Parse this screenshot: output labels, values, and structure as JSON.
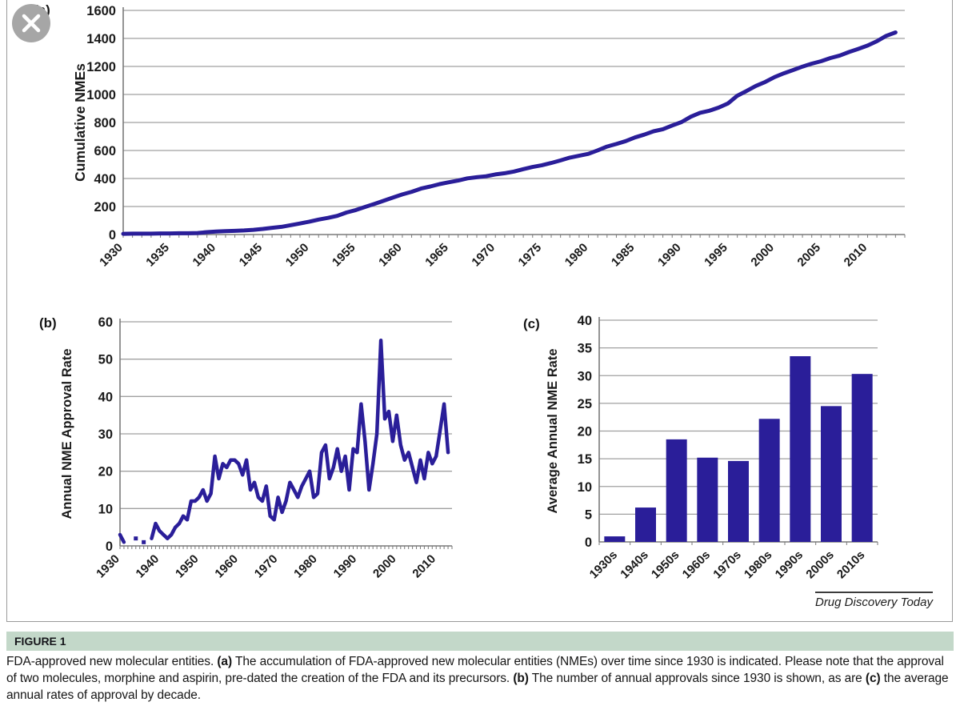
{
  "panels": {
    "a_tag": "(a)",
    "b_tag": "(b)",
    "c_tag": "(c)"
  },
  "source_label": "Drug Discovery Today",
  "caption": {
    "heading": "FIGURE 1",
    "segments": [
      {
        "text": "FDA-approved new molecular entities. ",
        "bold": false
      },
      {
        "text": "(a)",
        "bold": true
      },
      {
        "text": " The accumulation of FDA-approved new molecular entities (NMEs) over time since 1930 is indicated. Please note that the approval of two molecules, morphine and aspirin, pre-dated the creation of the FDA and its precursors. ",
        "bold": false
      },
      {
        "text": "(b)",
        "bold": true
      },
      {
        "text": " The number of annual approvals since 1930 is shown, as are ",
        "bold": false
      },
      {
        "text": "(c)",
        "bold": true
      },
      {
        "text": " the average annual rates of approval by decade.",
        "bold": false
      }
    ]
  },
  "colors": {
    "series_navy": "#2a1e99",
    "grid_gray": "#a0a0a0",
    "axis_gray": "#7a7a7a"
  },
  "chart_data": [
    {
      "id": "a",
      "type": "line",
      "title": "",
      "ylabel": "Cumulative NMEs",
      "ylim": [
        0,
        1600
      ],
      "ytick_step": 200,
      "x_start": 1930,
      "x_end": 2013,
      "xtick_interval": 5,
      "xtick_labels": [
        "1930",
        "1935",
        "1940",
        "1945",
        "1950",
        "1955",
        "1960",
        "1965",
        "1970",
        "1975",
        "1980",
        "1985",
        "1990",
        "1995",
        "2000",
        "2005",
        "2010"
      ],
      "grid": true,
      "legend": "none",
      "values": [
        5,
        6,
        6,
        6,
        8,
        8,
        9,
        9,
        11,
        17,
        21,
        24,
        26,
        29,
        34,
        40,
        48,
        55,
        67,
        79,
        92,
        107,
        119,
        133,
        157,
        175,
        197,
        218,
        241,
        264,
        286,
        305,
        328,
        343,
        360,
        373,
        385,
        401,
        409,
        416,
        429,
        438,
        450,
        467,
        482,
        495,
        511,
        529,
        549,
        562,
        576,
        601,
        628,
        646,
        667,
        693,
        713,
        737,
        752,
        778,
        803,
        841,
        869,
        884,
        906,
        936,
        991,
        1025,
        1061,
        1089,
        1124,
        1151,
        1174,
        1199,
        1220,
        1237,
        1260,
        1278,
        1303,
        1325,
        1349,
        1380,
        1418,
        1443
      ]
    },
    {
      "id": "b",
      "type": "line",
      "title": "",
      "ylabel": "Annual NME Approval Rate",
      "ylim": [
        0,
        60
      ],
      "ytick_step": 10,
      "x_start": 1930,
      "x_end": 2013,
      "xtick_interval": 10,
      "xtick_labels": [
        "1930",
        "1940",
        "1950",
        "1960",
        "1970",
        "1980",
        "1990",
        "2000",
        "2010"
      ],
      "grid": true,
      "legend": "none",
      "values": [
        3,
        1,
        null,
        null,
        2,
        null,
        1,
        null,
        2,
        6,
        4,
        3,
        2,
        3,
        5,
        6,
        8,
        7,
        12,
        12,
        13,
        15,
        12,
        14,
        24,
        18,
        22,
        21,
        23,
        23,
        22,
        19,
        23,
        15,
        17,
        13,
        12,
        16,
        8,
        7,
        13,
        9,
        12,
        17,
        15,
        13,
        16,
        18,
        20,
        13,
        14,
        25,
        27,
        18,
        21,
        26,
        20,
        24,
        15,
        26,
        25,
        38,
        28,
        15,
        22,
        30,
        55,
        34,
        36,
        28,
        35,
        27,
        23,
        25,
        21,
        17,
        23,
        18,
        25,
        22,
        24,
        31,
        38,
        25
      ]
    },
    {
      "id": "c",
      "type": "bar",
      "title": "",
      "ylabel": "Average Annual NME Rate",
      "ylim": [
        0,
        40
      ],
      "ytick_step": 5,
      "categories": [
        "1930s",
        "1940s",
        "1950s",
        "1960s",
        "1970s",
        "1980s",
        "1990s",
        "2000s",
        "2010s"
      ],
      "values": [
        1,
        6.2,
        18.5,
        15.2,
        14.6,
        22.2,
        33.5,
        24.5,
        30.3
      ],
      "grid": true,
      "legend": "none"
    }
  ]
}
